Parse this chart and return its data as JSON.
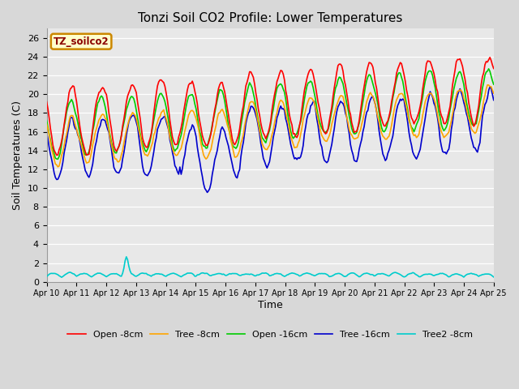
{
  "title": "Tonzi Soil CO2 Profile: Lower Temperatures",
  "xlabel": "Time",
  "ylabel": "Soil Temperatures (C)",
  "watermark": "TZ_soilco2",
  "ylim": [
    0,
    27
  ],
  "yticks": [
    0,
    2,
    4,
    6,
    8,
    10,
    12,
    14,
    16,
    18,
    20,
    22,
    24,
    26
  ],
  "xtick_labels": [
    "Apr 10",
    "Apr 11",
    "Apr 12",
    "Apr 13",
    "Apr 14",
    "Apr 15",
    "Apr 16",
    "Apr 17",
    "Apr 18",
    "Apr 19",
    "Apr 20",
    "Apr 21",
    "Apr 22",
    "Apr 23",
    "Apr 24",
    "Apr 25"
  ],
  "legend_labels": [
    "Open -8cm",
    "Tree -8cm",
    "Open -16cm",
    "Tree -16cm",
    "Tree2 -8cm"
  ],
  "line_colors": [
    "#ff0000",
    "#ffa500",
    "#00cc00",
    "#0000cc",
    "#00cccc"
  ],
  "line_widths": [
    1.2,
    1.2,
    1.2,
    1.2,
    1.2
  ],
  "bg_color": "#e8e8e8",
  "fig_color": "#d8d8d8",
  "title_fontsize": 11,
  "label_fontsize": 9,
  "tick_fontsize": 8
}
